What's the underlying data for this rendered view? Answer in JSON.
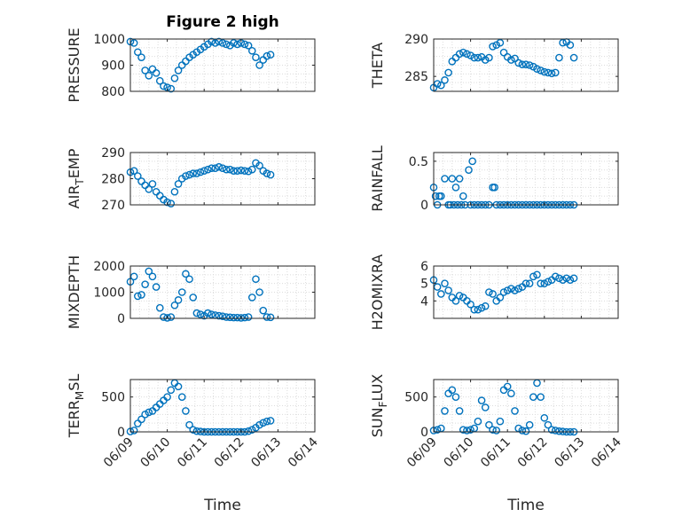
{
  "figure": {
    "title": "Figure 2 high"
  },
  "colors": {
    "marker": "#0072BD",
    "axis": "#262626",
    "grid": "#dcdcdc"
  },
  "x_axis": {
    "label": "Time",
    "ticks": [
      "06/09",
      "06/10",
      "06/11",
      "06/12",
      "06/13",
      "06/14"
    ],
    "range_days": [
      0,
      5
    ],
    "grid": true
  },
  "chart_data": [
    {
      "type": "scatter",
      "ylabel": "PRESSURE",
      "ylim": [
        800,
        1000
      ],
      "yticks": [
        800,
        900,
        1000
      ],
      "x": [
        0,
        0.1,
        0.2,
        0.3,
        0.4,
        0.5,
        0.6,
        0.7,
        0.8,
        0.9,
        1,
        1.1,
        1.2,
        1.3,
        1.4,
        1.5,
        1.6,
        1.7,
        1.8,
        1.9,
        2,
        2.1,
        2.2,
        2.3,
        2.4,
        2.5,
        2.6,
        2.7,
        2.8,
        2.9,
        3,
        3.1,
        3.2,
        3.3,
        3.4,
        3.5,
        3.6,
        3.7,
        3.8
      ],
      "y": [
        990,
        985,
        950,
        930,
        880,
        860,
        885,
        870,
        840,
        820,
        815,
        810,
        850,
        880,
        900,
        915,
        930,
        940,
        950,
        960,
        970,
        980,
        990,
        985,
        990,
        985,
        980,
        975,
        985,
        980,
        985,
        980,
        975,
        955,
        930,
        900,
        920,
        935,
        940
      ]
    },
    {
      "type": "scatter",
      "ylabel": "THETA",
      "ylim": [
        283,
        290
      ],
      "yticks": [
        285,
        290
      ],
      "x": [
        0,
        0.1,
        0.2,
        0.3,
        0.4,
        0.5,
        0.6,
        0.7,
        0.8,
        0.9,
        1,
        1.1,
        1.2,
        1.3,
        1.4,
        1.5,
        1.6,
        1.7,
        1.8,
        1.9,
        2,
        2.1,
        2.2,
        2.3,
        2.4,
        2.5,
        2.6,
        2.7,
        2.8,
        2.9,
        3,
        3.1,
        3.2,
        3.3,
        3.4,
        3.5,
        3.6,
        3.7,
        3.8
      ],
      "y": [
        283.5,
        284,
        283.8,
        284.5,
        285.5,
        287,
        287.5,
        288,
        288.2,
        288,
        287.8,
        287.5,
        287.5,
        287.6,
        287.2,
        287.5,
        289,
        289.2,
        289.5,
        288.2,
        287.6,
        287.2,
        287.4,
        286.8,
        286.6,
        286.6,
        286.5,
        286.3,
        286,
        285.8,
        285.6,
        285.5,
        285.4,
        285.5,
        287.5,
        289.5,
        289.6,
        289.2,
        287.5
      ]
    },
    {
      "type": "scatter",
      "ylabel": "AIR_TEMP",
      "ylim": [
        270,
        290
      ],
      "yticks": [
        270,
        280,
        290
      ],
      "x": [
        0,
        0.1,
        0.2,
        0.3,
        0.4,
        0.5,
        0.6,
        0.7,
        0.8,
        0.9,
        1,
        1.1,
        1.2,
        1.3,
        1.4,
        1.5,
        1.6,
        1.7,
        1.8,
        1.9,
        2,
        2.1,
        2.2,
        2.3,
        2.4,
        2.5,
        2.6,
        2.7,
        2.8,
        2.9,
        3,
        3.1,
        3.2,
        3.3,
        3.4,
        3.5,
        3.6,
        3.7,
        3.8
      ],
      "y": [
        282.5,
        283,
        281,
        279,
        277.5,
        276,
        278,
        275,
        273.5,
        272,
        271,
        270.5,
        275,
        278,
        280,
        281,
        281.5,
        282,
        282,
        282.5,
        283,
        283.5,
        284,
        284,
        284.5,
        284,
        283.5,
        283.5,
        283,
        283,
        283.2,
        283,
        282.8,
        283.5,
        286,
        285,
        283,
        282,
        281.5
      ]
    },
    {
      "type": "scatter",
      "ylabel": "RAINFALL",
      "ylim": [
        0,
        0.6
      ],
      "yticks": [
        0,
        0.5
      ],
      "x": [
        0,
        0.05,
        0.15,
        0.2,
        0.3,
        0.5,
        0.6,
        0.7,
        0.8,
        0.95,
        1.05,
        1.6,
        1.65,
        0.1,
        0.4,
        0.45,
        0.55,
        0.65,
        0.75,
        0.85,
        1,
        1.1,
        1.2,
        1.3,
        1.4,
        1.5,
        1.7,
        1.8,
        1.9,
        2,
        2.1,
        2.2,
        2.3,
        2.4,
        2.5,
        2.6,
        2.7,
        2.8,
        2.9,
        3,
        3.1,
        3.2,
        3.3,
        3.4,
        3.5,
        3.6,
        3.7,
        3.8
      ],
      "y": [
        0.2,
        0.1,
        0.1,
        0.1,
        0.3,
        0.3,
        0.2,
        0.3,
        0.1,
        0.4,
        0.5,
        0.2,
        0.2,
        0,
        0,
        0,
        0,
        0,
        0,
        0,
        0,
        0,
        0,
        0,
        0,
        0,
        0,
        0,
        0,
        0,
        0,
        0,
        0,
        0,
        0,
        0,
        0,
        0,
        0,
        0,
        0,
        0,
        0,
        0,
        0,
        0,
        0,
        0
      ]
    },
    {
      "type": "scatter",
      "ylabel": "MIXDEPTH",
      "ylim": [
        0,
        2000
      ],
      "yticks": [
        0,
        1000,
        2000
      ],
      "x": [
        0,
        0.1,
        0.2,
        0.3,
        0.4,
        0.5,
        0.6,
        0.7,
        0.8,
        0.9,
        1,
        1.1,
        1.2,
        1.3,
        1.4,
        1.5,
        1.6,
        1.7,
        1.8,
        1.9,
        2,
        2.1,
        2.2,
        2.3,
        2.4,
        2.5,
        2.6,
        2.7,
        2.8,
        2.9,
        3,
        3.1,
        3.2,
        3.3,
        3.4,
        3.5,
        3.6,
        3.7,
        3.8
      ],
      "y": [
        1400,
        1600,
        850,
        900,
        1300,
        1800,
        1600,
        1200,
        400,
        50,
        20,
        50,
        500,
        700,
        1000,
        1700,
        1500,
        800,
        200,
        150,
        100,
        200,
        150,
        120,
        100,
        80,
        50,
        40,
        30,
        30,
        20,
        30,
        50,
        800,
        1500,
        1000,
        300,
        50,
        40
      ]
    },
    {
      "type": "scatter",
      "ylabel": "H2OMIXRA",
      "ylim": [
        3,
        6
      ],
      "yticks": [
        4,
        5,
        6
      ],
      "x": [
        0,
        0.1,
        0.2,
        0.3,
        0.4,
        0.5,
        0.6,
        0.7,
        0.8,
        0.9,
        1,
        1.1,
        1.2,
        1.3,
        1.4,
        1.5,
        1.6,
        1.7,
        1.8,
        1.9,
        2,
        2.1,
        2.2,
        2.3,
        2.4,
        2.5,
        2.6,
        2.7,
        2.8,
        2.9,
        3,
        3.1,
        3.2,
        3.3,
        3.4,
        3.5,
        3.6,
        3.7,
        3.8
      ],
      "y": [
        5.2,
        4.8,
        4.4,
        5,
        4.6,
        4.2,
        4,
        4.3,
        4.2,
        4,
        3.8,
        3.5,
        3.5,
        3.6,
        3.7,
        4.5,
        4.4,
        4,
        4.2,
        4.5,
        4.6,
        4.7,
        4.6,
        4.7,
        4.8,
        5,
        5,
        5.4,
        5.5,
        5,
        5,
        5.1,
        5.2,
        5.4,
        5.3,
        5.2,
        5.3,
        5.2,
        5.3
      ]
    },
    {
      "type": "scatter",
      "ylabel": "TERR_MSL",
      "ylim": [
        0,
        750
      ],
      "yticks": [
        0,
        500
      ],
      "x": [
        0,
        0.1,
        0.2,
        0.3,
        0.4,
        0.5,
        0.6,
        0.7,
        0.8,
        0.9,
        1,
        1.1,
        1.2,
        1.3,
        1.4,
        1.5,
        1.6,
        1.7,
        1.8,
        1.9,
        2,
        2.1,
        2.2,
        2.3,
        2.4,
        2.5,
        2.6,
        2.7,
        2.8,
        2.9,
        3,
        3.1,
        3.2,
        3.3,
        3.4,
        3.5,
        3.6,
        3.7,
        3.8
      ],
      "y": [
        5,
        20,
        120,
        180,
        250,
        280,
        300,
        350,
        400,
        450,
        500,
        600,
        700,
        650,
        500,
        300,
        100,
        30,
        10,
        5,
        0,
        0,
        0,
        0,
        0,
        0,
        0,
        0,
        0,
        0,
        0,
        0,
        10,
        30,
        60,
        100,
        130,
        150,
        160
      ]
    },
    {
      "type": "scatter",
      "ylabel": "SUN_FLUX",
      "ylim": [
        0,
        750
      ],
      "yticks": [
        0,
        500
      ],
      "x": [
        0,
        0.1,
        0.2,
        0.3,
        0.4,
        0.5,
        0.6,
        0.7,
        0.8,
        0.9,
        1,
        1.1,
        1.2,
        1.3,
        1.4,
        1.5,
        1.6,
        1.7,
        1.8,
        1.9,
        2,
        2.1,
        2.2,
        2.3,
        2.4,
        2.5,
        2.6,
        2.7,
        2.8,
        2.9,
        3,
        3.1,
        3.2,
        3.3,
        3.4,
        3.5,
        3.6,
        3.7,
        3.8
      ],
      "y": [
        20,
        30,
        50,
        300,
        550,
        600,
        500,
        300,
        30,
        20,
        30,
        50,
        150,
        450,
        350,
        100,
        30,
        20,
        150,
        600,
        650,
        550,
        300,
        50,
        20,
        10,
        100,
        500,
        700,
        500,
        200,
        100,
        30,
        20,
        10,
        5,
        0,
        0,
        0
      ]
    }
  ]
}
